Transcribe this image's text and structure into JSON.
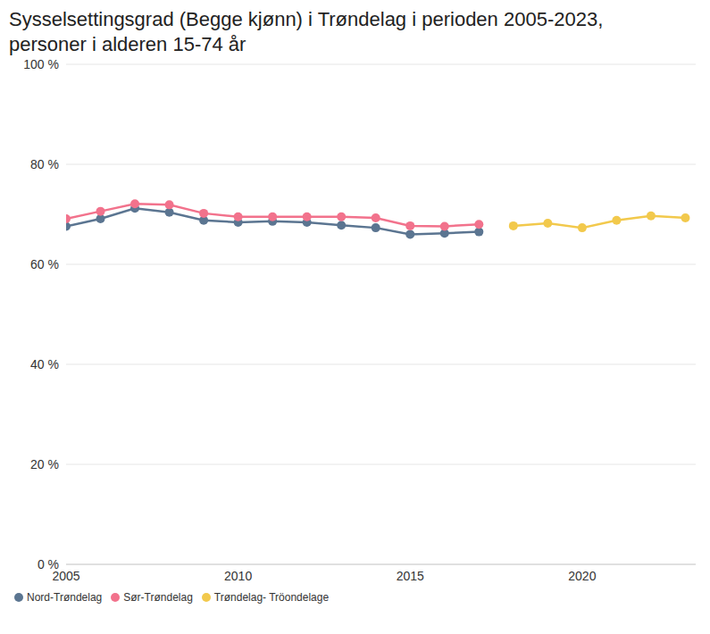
{
  "chart_data": {
    "type": "line",
    "title": "Sysselsettingsgrad (Begge kjønn) i Trøndelag i perioden 2005-2023, personer i alderen 15-74 år",
    "xlim": [
      2005,
      2023.3
    ],
    "xticks": [
      2005,
      2010,
      2015,
      2020
    ],
    "ylim": [
      0,
      100
    ],
    "yticks": [
      {
        "value": 0,
        "label": "0 %"
      },
      {
        "value": 20,
        "label": "20 %"
      },
      {
        "value": 40,
        "label": "40 %"
      },
      {
        "value": 60,
        "label": "60 %"
      },
      {
        "value": 80,
        "label": "80 %"
      },
      {
        "value": 100,
        "label": "100 %"
      }
    ],
    "grid": true,
    "legend": "bottom left",
    "marker": "circle",
    "series": [
      {
        "name": "Nord-Trøndelag",
        "color": "#5b7591",
        "x": [
          2005,
          2006,
          2007,
          2008,
          2009,
          2010,
          2011,
          2012,
          2013,
          2014,
          2015,
          2016,
          2017
        ],
        "values": [
          67.6,
          69.1,
          71.2,
          70.4,
          68.8,
          68.4,
          68.6,
          68.4,
          67.8,
          67.3,
          66.0,
          66.2,
          66.5
        ]
      },
      {
        "name": "Sør-Trøndelag",
        "color": "#f2728c",
        "x": [
          2005,
          2006,
          2007,
          2008,
          2009,
          2010,
          2011,
          2012,
          2013,
          2014,
          2015,
          2016,
          2017
        ],
        "values": [
          69.1,
          70.6,
          72.1,
          71.9,
          70.2,
          69.5,
          69.5,
          69.5,
          69.5,
          69.3,
          67.7,
          67.6,
          68.0
        ]
      },
      {
        "name": "Trøndelag- Tröondelage",
        "color": "#f2c94c",
        "x": [
          2018,
          2019,
          2020,
          2021,
          2022,
          2023
        ],
        "values": [
          67.7,
          68.2,
          67.3,
          68.8,
          69.7,
          69.3
        ]
      }
    ]
  }
}
